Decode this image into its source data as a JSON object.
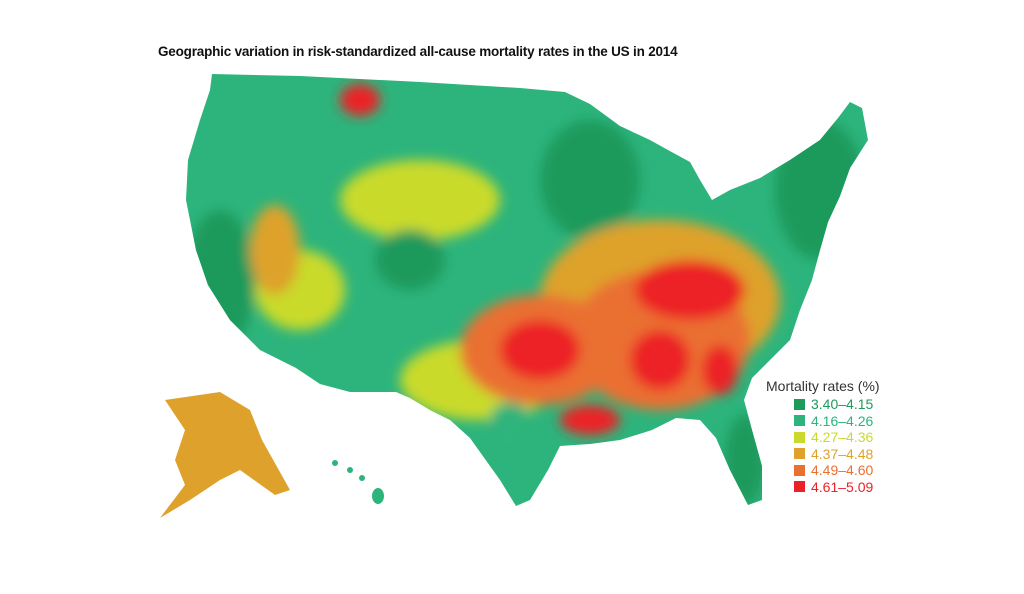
{
  "title": "Geographic variation in risk-standardized all-cause mortality rates in the US in 2014",
  "legend": {
    "title": "Mortality rates (%)",
    "items": [
      {
        "label": "3.40–4.15",
        "color": "#1e9a5c"
      },
      {
        "label": "4.16–4.26",
        "color": "#2db47c"
      },
      {
        "label": "4.27–4.36",
        "color": "#c9da2c"
      },
      {
        "label": "4.37–4.48",
        "color": "#dea22c"
      },
      {
        "label": "4.49–4.60",
        "color": "#ea7030"
      },
      {
        "label": "4.61–5.09",
        "color": "#ec2128"
      }
    ]
  }
}
